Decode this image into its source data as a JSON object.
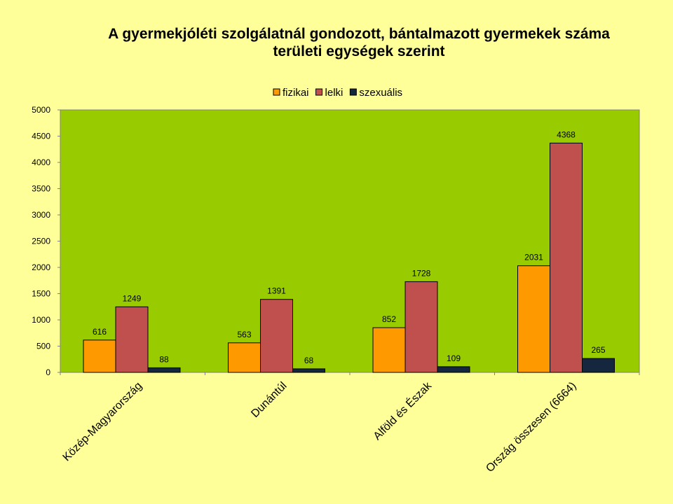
{
  "chart_data": {
    "type": "bar",
    "title": [
      "A gyermekjóléti szolgálatnál gondozott, bántalmazott gyermekek száma",
      "területi egységek szerint"
    ],
    "categories": [
      "Közép-Magyarország",
      "Dunántúl",
      "Alföld és Észak",
      "Ország összesen (6664)"
    ],
    "series": [
      {
        "name": "fizikai",
        "values": [
          616,
          563,
          852,
          2031
        ],
        "color": "#FF9900"
      },
      {
        "name": "lelki",
        "values": [
          1249,
          1391,
          1728,
          4368
        ],
        "color": "#C0504D"
      },
      {
        "name": "szexuális",
        "values": [
          88,
          68,
          109,
          265
        ],
        "color": "#14273E"
      }
    ],
    "ylim": [
      0,
      5000
    ],
    "yticks": [
      "0",
      "500",
      "1000",
      "1500",
      "2000",
      "2500",
      "3000",
      "3500",
      "4000",
      "4500",
      "5000"
    ],
    "legend_position": "top-center",
    "plot_background": "#99CC00",
    "page_background": "#FFFF99",
    "grid": false
  }
}
